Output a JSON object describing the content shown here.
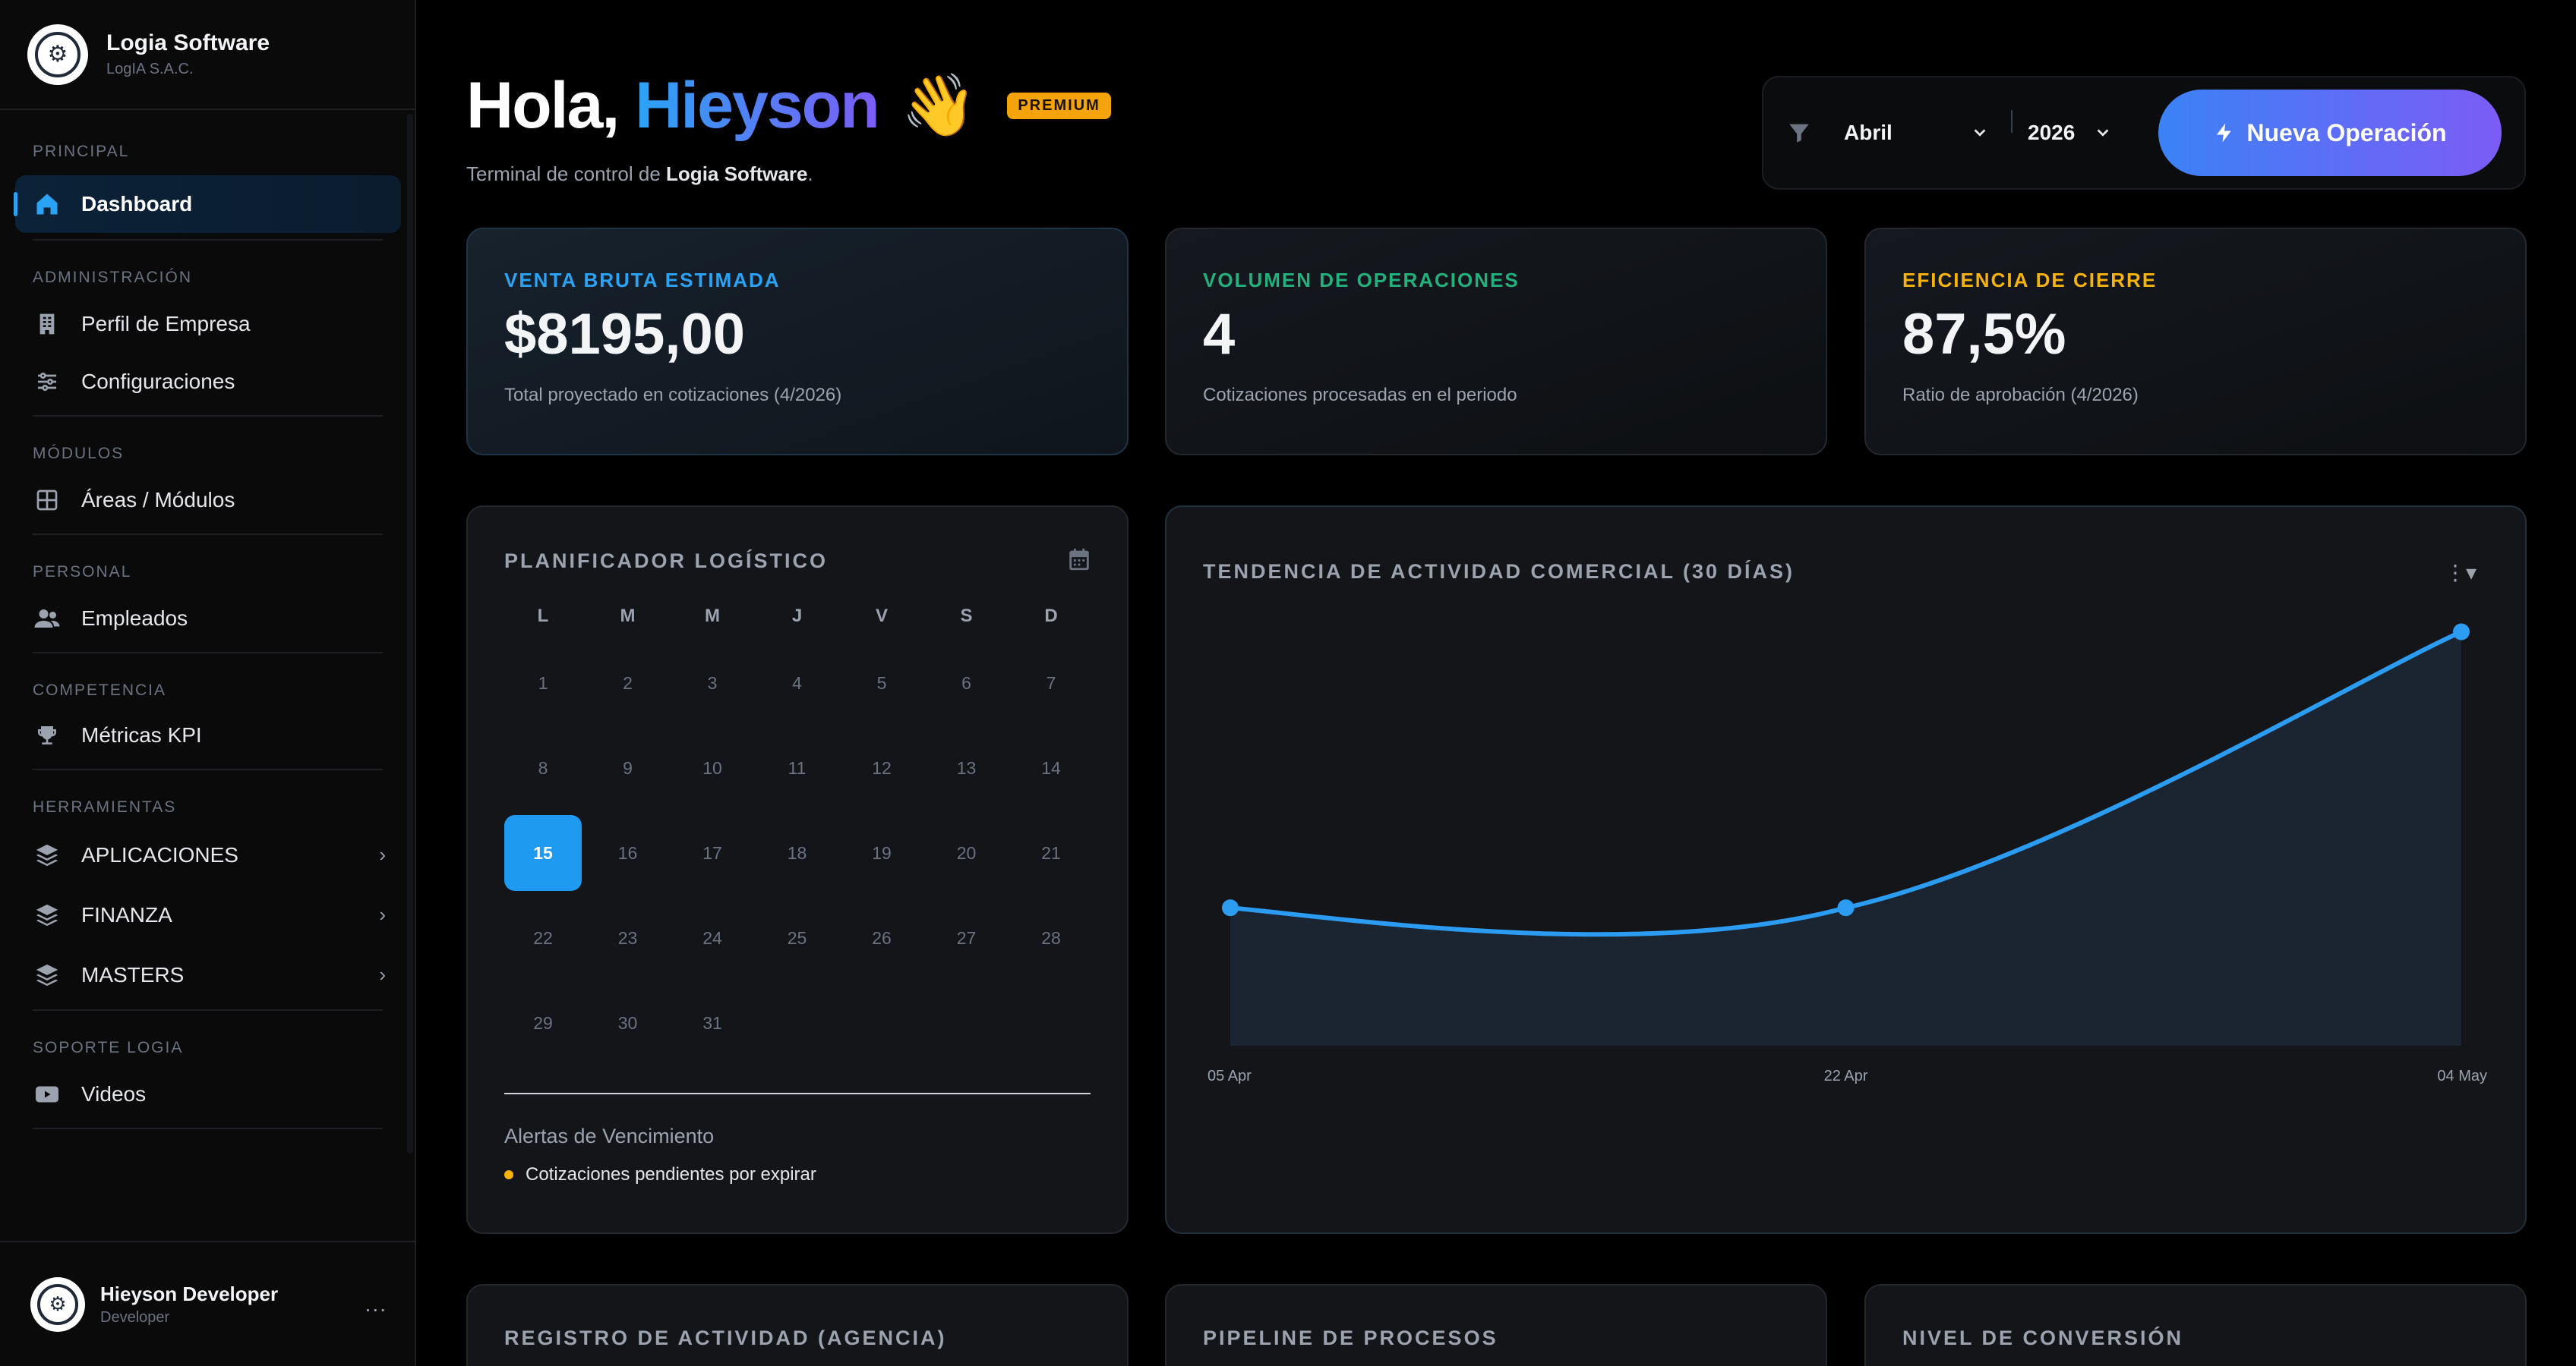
{
  "brand": {
    "name": "Logia Software",
    "company": "LogIA S.A.C."
  },
  "sidebar": {
    "sections": [
      {
        "label": "PRINCIPAL",
        "items": [
          {
            "label": "Dashboard",
            "icon": "home-icon",
            "active": true
          }
        ]
      },
      {
        "label": "ADMINISTRACIÓN",
        "items": [
          {
            "label": "Perfil de Empresa",
            "icon": "building-icon"
          },
          {
            "label": "Configuraciones",
            "icon": "sliders-icon"
          }
        ]
      },
      {
        "label": "MÓDULOS",
        "items": [
          {
            "label": "Áreas / Módulos",
            "icon": "grid-icon"
          }
        ]
      },
      {
        "label": "PERSONAL",
        "items": [
          {
            "label": "Empleados",
            "icon": "users-icon"
          }
        ]
      },
      {
        "label": "COMPETENCIA",
        "items": [
          {
            "label": "Métricas KPI",
            "icon": "trophy-icon"
          }
        ]
      },
      {
        "label": "HERRAMIENTAS",
        "items": [
          {
            "label": "APLICACIONES",
            "icon": "layers-icon",
            "expandable": true
          },
          {
            "label": "FINANZA",
            "icon": "layers-icon",
            "expandable": true
          },
          {
            "label": "MASTERS",
            "icon": "layers-icon",
            "expandable": true
          }
        ]
      },
      {
        "label": "SOPORTE LOGIA",
        "items": [
          {
            "label": "Videos",
            "icon": "youtube-icon"
          }
        ]
      }
    ]
  },
  "user": {
    "name": "Hieyson Developer",
    "role": "Developer",
    "menu": "..."
  },
  "header": {
    "greeting": "Hola,",
    "name": "Hieyson",
    "wave": "👋",
    "badge": "PREMIUM",
    "subtitle_prefix": "Terminal de control de",
    "subtitle_brand": "Logia Software",
    "subtitle_suffix": "."
  },
  "filters": {
    "month": "Abril",
    "year": "2026",
    "action": "Nueva Operación"
  },
  "kpis": [
    {
      "label": "VENTA BRUTA ESTIMADA",
      "value": "$8195,00",
      "desc": "Total proyectado en cotizaciones (4/2026)",
      "color": "#2ba3f5"
    },
    {
      "label": "VOLUMEN DE OPERACIONES",
      "value": "4",
      "desc": "Cotizaciones procesadas en el periodo",
      "color": "#22b07d"
    },
    {
      "label": "EFICIENCIA DE CIERRE",
      "value": "87,5%",
      "desc": "Ratio de aprobación (4/2026)",
      "color": "#f5b30b"
    }
  ],
  "calendar": {
    "title": "PLANIFICADOR LOGÍSTICO",
    "weekdays": [
      "L",
      "M",
      "M",
      "J",
      "V",
      "S",
      "D"
    ],
    "days": [
      "1",
      "2",
      "3",
      "4",
      "5",
      "6",
      "7",
      "8",
      "9",
      "10",
      "11",
      "12",
      "13",
      "14",
      "15",
      "16",
      "17",
      "18",
      "19",
      "20",
      "21",
      "22",
      "23",
      "24",
      "25",
      "26",
      "27",
      "28",
      "29",
      "30",
      "31"
    ],
    "today": "15",
    "alerts_title": "Alertas de Vencimiento",
    "alerts": [
      "Cotizaciones pendientes por expirar"
    ]
  },
  "chart_data": {
    "type": "area",
    "title": "TENDENCIA DE ACTIVIDAD COMERCIAL (30 DÍAS)",
    "categories": [
      "05 Apr",
      "22 Apr",
      "04 May"
    ],
    "values": [
      1,
      1,
      3
    ],
    "ylim": [
      0,
      3.3
    ],
    "color": "#2b9cf2",
    "grid": false
  },
  "bottom": {
    "activity": "REGISTRO DE ACTIVIDAD (AGENCIA)",
    "pipeline": "PIPELINE DE PROCESOS",
    "conversion": "NIVEL DE CONVERSIÓN"
  }
}
